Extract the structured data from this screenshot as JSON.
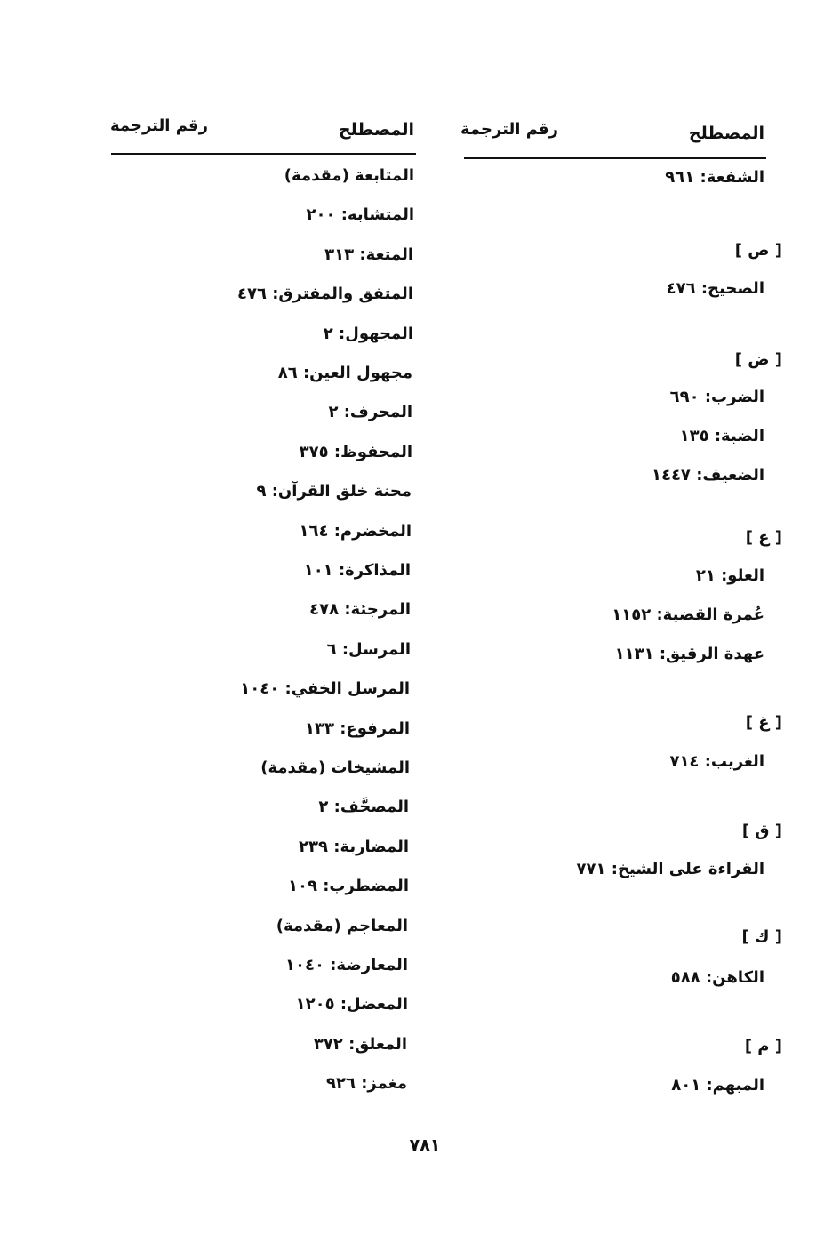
{
  "headers": {
    "right": {
      "term": "المصطلح",
      "number": "رقم الترجمة"
    },
    "left": {
      "term": "المصطلح",
      "number": "رقم الترجمة"
    }
  },
  "right_column": [
    "الشفعة: ٩٦١",
    "[ ص ]",
    "الصحيح: ٤٧٦",
    "[ ض ]",
    "الضرب: ٦٩٠",
    "الضبة: ١٣٥",
    "الضعيف: ١٤٤٧",
    "[ ع ]",
    "العلو: ٢١",
    "عُمرة القضية: ١١٥٢",
    "عهدة الرقيق: ١١٣١",
    "[ غ ]",
    "الغريب: ٧١٤",
    "[ ق ]",
    "القراءة على الشيخ: ٧٧١",
    "[ ك ]",
    "الكاهن: ٥٨٨",
    "[ م ]",
    "المبهم: ٨٠١"
  ],
  "left_column": [
    "المتابعة (مقدمة)",
    "المتشابه: ٢٠٠",
    "المتعة: ٣١٣",
    "المتفق والمفترق: ٤٧٦",
    "المجهول: ٢",
    "مجهول العين: ٨٦",
    "المحرف: ٢",
    "المحفوظ: ٣٧٥",
    "محنة خلق القرآن: ٩",
    "المخضرم: ١٦٤",
    "المذاكرة: ١٠١",
    "المرجئة: ٤٧٨",
    "المرسل: ٦",
    "المرسل الخفي: ١٠٤٠",
    "المرفوع: ١٣٣",
    "المشيخات (مقدمة)",
    "المصحَّف: ٢",
    "المضاربة: ٢٣٩",
    "المضطرب: ١٠٩",
    "المعاجم (مقدمة)",
    "المعارضة: ١٠٤٠",
    "المعضل: ١٢٠٥",
    "المعلق: ٣٧٢",
    "مغمز: ٩٢٦"
  ],
  "page_number": "٧٨١"
}
